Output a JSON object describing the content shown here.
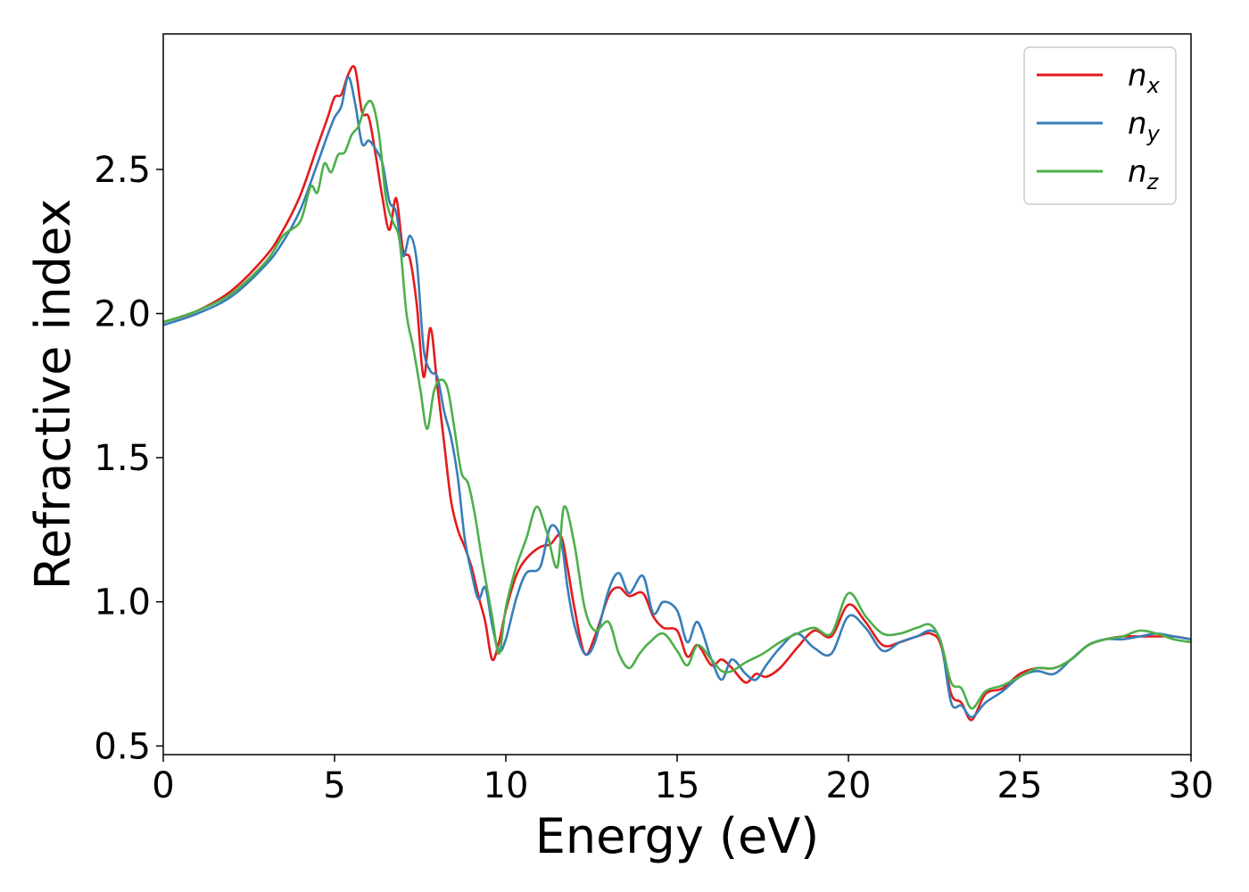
{
  "chart_data": {
    "type": "line",
    "xlabel": "Energy (eV)",
    "ylabel": "Refractive index",
    "xlim": [
      0,
      30
    ],
    "ylim": [
      0.47,
      2.97
    ],
    "xticks": [
      0,
      5,
      10,
      15,
      20,
      25,
      30
    ],
    "xtick_labels": [
      "0",
      "5",
      "10",
      "15",
      "20",
      "25",
      "30"
    ],
    "yticks": [
      0.5,
      1.0,
      1.5,
      2.0,
      2.5
    ],
    "ytick_labels": [
      "0.5",
      "1.0",
      "1.5",
      "2.0",
      "2.5"
    ],
    "grid": false,
    "legend_position": "top-right",
    "series": [
      {
        "name": "n",
        "subscript": "x",
        "color": "#e41a1c",
        "x": [
          0,
          1,
          2,
          3,
          3.5,
          4,
          4.5,
          4.8,
          5.0,
          5.2,
          5.4,
          5.6,
          5.8,
          6.0,
          6.2,
          6.4,
          6.6,
          6.8,
          7.0,
          7.2,
          7.4,
          7.6,
          7.8,
          8.0,
          8.2,
          8.4,
          8.6,
          8.8,
          9.0,
          9.2,
          9.4,
          9.6,
          9.8,
          10.0,
          10.3,
          10.6,
          11.0,
          11.3,
          11.6,
          11.8,
          12.0,
          12.3,
          12.6,
          13.0,
          13.3,
          13.6,
          14.0,
          14.3,
          14.6,
          15.0,
          15.3,
          15.6,
          16.0,
          16.3,
          16.6,
          17.0,
          17.3,
          17.6,
          18.0,
          18.5,
          19.0,
          19.5,
          20.0,
          20.5,
          21.0,
          21.5,
          22.0,
          22.4,
          22.7,
          23.0,
          23.3,
          23.6,
          24.0,
          24.5,
          25.0,
          25.5,
          26.0,
          26.5,
          27.0,
          27.5,
          28.0,
          28.5,
          29.0,
          29.5,
          30.0
        ],
        "values": [
          1.97,
          2.01,
          2.08,
          2.2,
          2.29,
          2.41,
          2.58,
          2.68,
          2.75,
          2.76,
          2.83,
          2.85,
          2.7,
          2.68,
          2.55,
          2.4,
          2.29,
          2.4,
          2.22,
          2.19,
          2.03,
          1.78,
          1.95,
          1.75,
          1.55,
          1.35,
          1.25,
          1.19,
          1.12,
          1.02,
          0.93,
          0.8,
          0.86,
          0.97,
          1.09,
          1.15,
          1.19,
          1.2,
          1.23,
          1.12,
          0.98,
          0.82,
          0.88,
          1.02,
          1.05,
          1.02,
          1.03,
          0.95,
          0.91,
          0.9,
          0.81,
          0.85,
          0.78,
          0.8,
          0.77,
          0.72,
          0.75,
          0.74,
          0.77,
          0.84,
          0.9,
          0.88,
          0.99,
          0.93,
          0.85,
          0.86,
          0.88,
          0.89,
          0.85,
          0.68,
          0.65,
          0.59,
          0.68,
          0.7,
          0.75,
          0.77,
          0.77,
          0.8,
          0.85,
          0.87,
          0.88,
          0.88,
          0.88,
          0.88,
          0.87
        ]
      },
      {
        "name": "n",
        "subscript": "y",
        "color": "#377eb8",
        "x": [
          0,
          1,
          2,
          3,
          3.5,
          4,
          4.5,
          4.8,
          5.0,
          5.2,
          5.4,
          5.6,
          5.8,
          6.0,
          6.2,
          6.4,
          6.6,
          6.8,
          7.0,
          7.2,
          7.4,
          7.6,
          7.8,
          8.0,
          8.2,
          8.4,
          8.6,
          8.8,
          9.0,
          9.2,
          9.4,
          9.6,
          9.8,
          10.0,
          10.3,
          10.6,
          11.0,
          11.3,
          11.6,
          11.8,
          12.0,
          12.3,
          12.6,
          13.0,
          13.3,
          13.6,
          14.0,
          14.3,
          14.6,
          15.0,
          15.3,
          15.6,
          16.0,
          16.3,
          16.6,
          17.0,
          17.3,
          17.6,
          18.0,
          18.5,
          19.0,
          19.5,
          20.0,
          20.5,
          21.0,
          21.5,
          22.0,
          22.4,
          22.7,
          23.0,
          23.3,
          23.6,
          24.0,
          24.5,
          25.0,
          25.5,
          26.0,
          26.5,
          27.0,
          27.5,
          28.0,
          28.5,
          29.0,
          29.5,
          30.0
        ],
        "values": [
          1.96,
          2.0,
          2.06,
          2.17,
          2.25,
          2.36,
          2.52,
          2.62,
          2.68,
          2.72,
          2.82,
          2.73,
          2.59,
          2.6,
          2.57,
          2.52,
          2.39,
          2.35,
          2.2,
          2.27,
          2.18,
          1.88,
          1.8,
          1.78,
          1.66,
          1.57,
          1.43,
          1.22,
          1.1,
          1.01,
          1.05,
          0.92,
          0.83,
          0.87,
          1.01,
          1.1,
          1.12,
          1.26,
          1.22,
          1.05,
          0.92,
          0.82,
          0.86,
          1.04,
          1.1,
          1.03,
          1.09,
          0.96,
          1.0,
          0.97,
          0.86,
          0.93,
          0.8,
          0.73,
          0.8,
          0.75,
          0.73,
          0.78,
          0.84,
          0.89,
          0.84,
          0.82,
          0.95,
          0.91,
          0.83,
          0.86,
          0.88,
          0.9,
          0.86,
          0.65,
          0.64,
          0.6,
          0.65,
          0.69,
          0.74,
          0.76,
          0.75,
          0.8,
          0.85,
          0.87,
          0.87,
          0.88,
          0.89,
          0.88,
          0.87
        ]
      },
      {
        "name": "n",
        "subscript": "z",
        "color": "#4daf4a",
        "x": [
          0,
          1,
          2,
          3,
          3.5,
          4,
          4.3,
          4.5,
          4.7,
          4.9,
          5.1,
          5.3,
          5.5,
          5.7,
          5.9,
          6.1,
          6.3,
          6.5,
          6.7,
          6.9,
          7.1,
          7.3,
          7.5,
          7.7,
          7.9,
          8.1,
          8.3,
          8.5,
          8.7,
          8.9,
          9.1,
          9.3,
          9.6,
          9.8,
          10.0,
          10.3,
          10.6,
          10.9,
          11.2,
          11.5,
          11.7,
          12.0,
          12.3,
          12.6,
          13.0,
          13.3,
          13.6,
          13.9,
          14.2,
          14.6,
          15.0,
          15.3,
          15.6,
          16.0,
          16.3,
          16.6,
          17.0,
          17.5,
          18.0,
          18.5,
          19.0,
          19.5,
          20.0,
          20.5,
          21.0,
          21.5,
          22.0,
          22.4,
          22.7,
          23.0,
          23.3,
          23.6,
          24.0,
          24.5,
          25.0,
          25.5,
          26.0,
          26.5,
          27.0,
          27.5,
          28.0,
          28.5,
          29.0,
          29.5,
          30.0
        ],
        "values": [
          1.97,
          2.01,
          2.07,
          2.18,
          2.27,
          2.32,
          2.44,
          2.42,
          2.52,
          2.49,
          2.55,
          2.56,
          2.62,
          2.65,
          2.72,
          2.73,
          2.62,
          2.4,
          2.32,
          2.25,
          2.0,
          1.88,
          1.74,
          1.6,
          1.73,
          1.77,
          1.74,
          1.6,
          1.45,
          1.41,
          1.3,
          1.15,
          0.95,
          0.82,
          0.98,
          1.12,
          1.22,
          1.33,
          1.24,
          1.12,
          1.33,
          1.2,
          0.98,
          0.9,
          0.93,
          0.82,
          0.77,
          0.82,
          0.86,
          0.89,
          0.83,
          0.78,
          0.85,
          0.8,
          0.76,
          0.76,
          0.79,
          0.82,
          0.86,
          0.89,
          0.91,
          0.89,
          1.03,
          0.95,
          0.89,
          0.89,
          0.91,
          0.92,
          0.86,
          0.72,
          0.7,
          0.63,
          0.69,
          0.71,
          0.74,
          0.77,
          0.77,
          0.8,
          0.85,
          0.87,
          0.88,
          0.9,
          0.89,
          0.87,
          0.86
        ]
      }
    ]
  }
}
